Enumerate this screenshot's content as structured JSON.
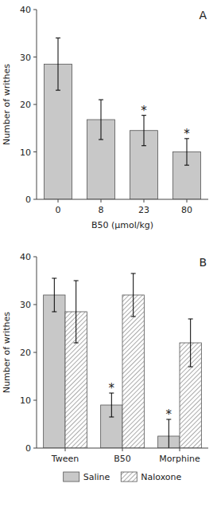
{
  "chart_data": [
    {
      "type": "bar",
      "title": "A",
      "xlabel": "B50 (μmol/kg)",
      "ylabel": "Number of writhes",
      "categories": [
        "0",
        "8",
        "23",
        "80"
      ],
      "values": [
        28.5,
        16.8,
        14.5,
        10.0
      ],
      "errors": [
        5.5,
        4.2,
        3.2,
        2.8
      ],
      "color": "#c8c8c8",
      "ylim": [
        0,
        40
      ],
      "yticks": [
        0,
        10,
        20,
        30,
        40
      ],
      "grid": false,
      "annotations": [
        {
          "text": "*",
          "category": "23"
        },
        {
          "text": "*",
          "category": "80"
        }
      ]
    },
    {
      "type": "bar",
      "title": "B",
      "ylabel": "Number of writhes",
      "categories": [
        "Tween",
        "B50",
        "Morphine"
      ],
      "series": [
        {
          "name": "Saline",
          "color": "#c8c8c8",
          "values": [
            32.0,
            9.0,
            2.5
          ],
          "errors": [
            3.5,
            2.5,
            3.5
          ]
        },
        {
          "name": "Naloxone",
          "color": "white",
          "values": [
            28.5,
            32.0,
            22.0
          ],
          "errors": [
            6.5,
            4.5,
            5.0
          ]
        }
      ],
      "ylim": [
        0,
        40
      ],
      "yticks": [
        0,
        10,
        20,
        30,
        40
      ],
      "grid": false,
      "legend": "bottom",
      "annotations": [
        {
          "text": "*",
          "category": "B50",
          "series": "Saline"
        },
        {
          "text": "*",
          "category": "Morphine",
          "series": "Saline"
        }
      ]
    }
  ]
}
